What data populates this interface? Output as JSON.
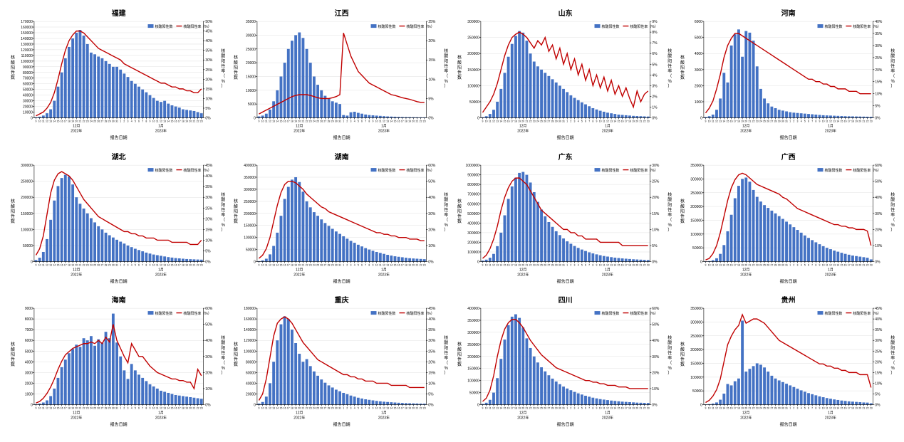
{
  "global": {
    "bar_color": "#4472c4",
    "line_color": "#c00000",
    "background_color": "#ffffff",
    "grid_color": "#e0e0e0",
    "axis_color": "#000000",
    "legend_bar_label": "核酸阳性数",
    "legend_line_label": "核酸阳性率（%）",
    "y_left_label": "核酸阳性数",
    "y_right_label": "核酸阳性率（%）",
    "x_label": "报告日期",
    "x_month_labels": [
      "12月",
      "1月"
    ],
    "x_year_labels": [
      "2022年",
      "2023年"
    ],
    "x_day_labels": [
      "9",
      "10",
      "11",
      "12",
      "13",
      "14",
      "15",
      "16",
      "17",
      "18",
      "19",
      "20",
      "21",
      "22",
      "23",
      "24",
      "25",
      "26",
      "27",
      "28",
      "29",
      "30",
      "31",
      "1",
      "2",
      "3",
      "4",
      "5",
      "6",
      "7",
      "8",
      "9",
      "10",
      "11",
      "12",
      "13",
      "14",
      "15",
      "16",
      "17",
      "18",
      "19",
      "20",
      "21",
      "22",
      "23"
    ],
    "title_fontsize": 10,
    "label_fontsize": 6,
    "tick_fontsize": 5,
    "bar_width": 0.75,
    "line_width": 1.4
  },
  "panels": [
    {
      "title": "福建",
      "y_left_max": 170000,
      "y_left_step": 10000,
      "y_right_max": 50,
      "y_right_step": 5,
      "bars": [
        1000,
        2000,
        4000,
        8000,
        15000,
        30000,
        55000,
        80000,
        105000,
        125000,
        140000,
        150000,
        155000,
        145000,
        130000,
        115000,
        112000,
        108000,
        105000,
        100000,
        95000,
        90000,
        90000,
        85000,
        78000,
        72000,
        65000,
        60000,
        55000,
        50000,
        45000,
        40000,
        35000,
        30000,
        28000,
        30000,
        25000,
        22000,
        20000,
        18000,
        15000,
        14000,
        13000,
        12000,
        10000,
        8000
      ],
      "line": [
        1,
        2,
        3,
        5,
        8,
        13,
        20,
        28,
        35,
        40,
        43,
        45,
        45,
        44,
        42,
        40,
        38,
        36,
        35,
        34,
        33,
        32,
        31,
        30,
        28,
        27,
        26,
        25,
        24,
        23,
        22,
        21,
        20,
        19,
        18,
        18,
        17,
        16,
        16,
        15,
        15,
        14,
        14,
        13,
        13,
        15
      ]
    },
    {
      "title": "江西",
      "y_left_max": 35000,
      "y_left_step": 5000,
      "y_right_max": 25,
      "y_right_step": 5,
      "bars": [
        500,
        800,
        1500,
        3000,
        6000,
        10000,
        15000,
        20000,
        25000,
        28000,
        30000,
        31000,
        29000,
        25000,
        20000,
        15000,
        12000,
        10000,
        8000,
        7000,
        6000,
        5500,
        5000,
        1000,
        800,
        2000,
        2200,
        1800,
        1500,
        1200,
        1000,
        900,
        800,
        700,
        600,
        500,
        450,
        400,
        350,
        300,
        280,
        260,
        240,
        220,
        200,
        180
      ],
      "line": [
        1,
        1.5,
        2,
        2.5,
        3,
        3.5,
        4,
        4.5,
        5,
        5.5,
        5.8,
        6,
        6,
        6,
        5.8,
        5.5,
        5.2,
        5,
        5,
        5,
        5.2,
        5.5,
        6,
        22,
        19,
        16,
        14,
        12,
        11,
        10,
        9,
        8.5,
        8,
        7.5,
        7,
        6.5,
        6,
        5.8,
        5.5,
        5.2,
        5,
        4.8,
        4.5,
        4.2,
        4,
        4
      ]
    },
    {
      "title": "山东",
      "y_left_max": 300000,
      "y_left_step": 50000,
      "y_right_max": 9,
      "y_right_step": 1,
      "bars": [
        2000,
        5000,
        12000,
        25000,
        50000,
        90000,
        140000,
        190000,
        230000,
        255000,
        270000,
        265000,
        240000,
        200000,
        175000,
        160000,
        150000,
        140000,
        130000,
        120000,
        110000,
        100000,
        90000,
        80000,
        70000,
        62000,
        55000,
        48000,
        42000,
        36000,
        30000,
        26000,
        22000,
        19000,
        16000,
        14000,
        12000,
        10000,
        9000,
        8000,
        7000,
        6000,
        5500,
        5000,
        4500,
        4000
      ],
      "line": [
        0.5,
        1,
        1.5,
        2.2,
        3.2,
        4.5,
        5.8,
        6.8,
        7.5,
        7.8,
        8,
        7.8,
        7.5,
        7,
        6.5,
        7.2,
        6.8,
        7.5,
        6.2,
        6.8,
        5.5,
        6.5,
        5,
        6,
        4.5,
        5.5,
        4,
        5,
        3.5,
        4.5,
        3,
        4,
        2.8,
        3.8,
        2.5,
        3.5,
        2.2,
        3,
        2,
        2.8,
        1.8,
        1,
        2.5,
        1.5,
        2.2,
        2.5
      ]
    },
    {
      "title": "河南",
      "y_left_max": 6000,
      "y_left_step": 1000,
      "y_right_max": 40,
      "y_right_step": 5,
      "bars": [
        50,
        100,
        200,
        500,
        1200,
        2800,
        2200,
        4500,
        5200,
        5500,
        3800,
        5400,
        5300,
        4800,
        3200,
        1800,
        1200,
        900,
        700,
        600,
        500,
        450,
        400,
        350,
        320,
        300,
        280,
        260,
        240,
        220,
        200,
        180,
        160,
        150,
        140,
        130,
        120,
        110,
        100,
        95,
        90,
        85,
        80,
        75,
        70,
        65
      ],
      "line": [
        2,
        4,
        7,
        12,
        18,
        25,
        30,
        33,
        35,
        35,
        34,
        33,
        32,
        31,
        30,
        29,
        28,
        27,
        26,
        25,
        24,
        23,
        22,
        21,
        20,
        19,
        18,
        17,
        16,
        16,
        15,
        15,
        14,
        14,
        13,
        13,
        12,
        12,
        12,
        11,
        11,
        11,
        10,
        10,
        10,
        10
      ]
    },
    {
      "title": "湖北",
      "y_left_max": 300000,
      "y_left_step": 50000,
      "y_right_max": 45,
      "y_right_step": 5,
      "bars": [
        5000,
        12000,
        30000,
        70000,
        130000,
        190000,
        235000,
        260000,
        270000,
        265000,
        240000,
        200000,
        180000,
        165000,
        150000,
        135000,
        122000,
        110000,
        100000,
        90000,
        82000,
        75000,
        68000,
        62000,
        56000,
        50000,
        45000,
        40000,
        36000,
        32000,
        28000,
        25000,
        22000,
        20000,
        18000,
        16000,
        14000,
        12500,
        11000,
        10000,
        9000,
        8000,
        7500,
        7000,
        6500,
        6000
      ],
      "line": [
        3,
        6,
        12,
        22,
        32,
        38,
        41,
        42,
        41,
        40,
        38,
        35,
        32,
        29,
        27,
        25,
        23,
        21,
        20,
        19,
        18,
        17,
        16,
        15,
        14,
        14,
        13,
        13,
        12,
        12,
        11,
        11,
        11,
        10,
        10,
        10,
        10,
        9,
        9,
        9,
        9,
        9,
        8,
        8,
        8,
        10
      ]
    },
    {
      "title": "湖南",
      "y_left_max": 400000,
      "y_left_step": 50000,
      "y_right_max": 60,
      "y_right_step": 10,
      "bars": [
        2000,
        5000,
        12000,
        30000,
        65000,
        120000,
        190000,
        260000,
        310000,
        340000,
        350000,
        330000,
        290000,
        250000,
        225000,
        205000,
        190000,
        175000,
        160000,
        148000,
        136000,
        125000,
        115000,
        105000,
        95000,
        86000,
        78000,
        70000,
        63000,
        56000,
        50000,
        45000,
        40000,
        36000,
        32000,
        28000,
        25000,
        22000,
        20000,
        18000,
        16000,
        14000,
        13000,
        12000,
        11000,
        10000
      ],
      "line": [
        2,
        4,
        8,
        15,
        25,
        35,
        43,
        48,
        50,
        50,
        49,
        47,
        45,
        42,
        40,
        38,
        36,
        34,
        33,
        31,
        30,
        29,
        28,
        27,
        26,
        25,
        24,
        23,
        22,
        21,
        20,
        19,
        18,
        18,
        17,
        17,
        16,
        16,
        15,
        15,
        15,
        14,
        14,
        14,
        13,
        13
      ]
    },
    {
      "title": "广东",
      "y_left_max": 1000000,
      "y_left_step": 100000,
      "y_right_max": 30,
      "y_right_step": 5,
      "bars": [
        10000,
        20000,
        40000,
        80000,
        160000,
        300000,
        480000,
        650000,
        780000,
        870000,
        920000,
        930000,
        900000,
        820000,
        720000,
        620000,
        540000,
        470000,
        410000,
        360000,
        315000,
        275000,
        240000,
        210000,
        185000,
        162000,
        142000,
        125000,
        110000,
        96000,
        85000,
        75000,
        66000,
        58000,
        52000,
        46000,
        41000,
        37000,
        33000,
        30000,
        27000,
        24000,
        22000,
        20000,
        18000,
        16000
      ],
      "line": [
        1,
        2,
        4,
        7,
        11,
        16,
        20,
        23,
        25,
        26,
        26,
        25,
        24,
        22,
        20,
        18,
        16,
        15,
        14,
        13,
        12,
        11,
        10,
        10,
        9,
        9,
        8,
        8,
        7,
        7,
        7,
        7,
        6,
        6,
        6,
        6,
        6,
        6,
        5,
        5,
        5,
        5,
        5,
        5,
        5,
        5
      ]
    },
    {
      "title": "广西",
      "y_left_max": 350000,
      "y_left_step": 50000,
      "y_right_max": 60,
      "y_right_step": 10,
      "bars": [
        1000,
        2000,
        5000,
        12000,
        28000,
        60000,
        110000,
        170000,
        230000,
        275000,
        300000,
        305000,
        290000,
        260000,
        235000,
        218000,
        205000,
        195000,
        185000,
        175000,
        165000,
        155000,
        145000,
        135000,
        125000,
        115000,
        105000,
        95000,
        86000,
        78000,
        70000,
        63000,
        56000,
        50000,
        45000,
        40000,
        36000,
        32000,
        28000,
        25000,
        22000,
        20000,
        18000,
        16000,
        14000,
        8000
      ],
      "line": [
        1,
        2,
        5,
        10,
        18,
        28,
        38,
        46,
        51,
        54,
        55,
        54,
        52,
        50,
        48,
        47,
        46,
        45,
        44,
        43,
        42,
        40,
        39,
        37,
        35,
        33,
        32,
        31,
        30,
        29,
        28,
        27,
        26,
        25,
        24,
        23,
        23,
        22,
        22,
        21,
        21,
        20,
        20,
        20,
        19,
        10
      ]
    },
    {
      "title": "海南",
      "y_left_max": 9000,
      "y_left_step": 1000,
      "y_right_max": 60,
      "y_right_step": 10,
      "bars": [
        50,
        100,
        200,
        400,
        800,
        1500,
        2500,
        3500,
        4200,
        4800,
        5200,
        5600,
        5400,
        6200,
        6000,
        6400,
        5500,
        6100,
        5800,
        6800,
        6200,
        8500,
        5800,
        4500,
        3200,
        2400,
        3800,
        3200,
        2800,
        2500,
        2200,
        1900,
        1700,
        1500,
        1300,
        1200,
        1100,
        1000,
        900,
        850,
        800,
        750,
        700,
        650,
        600,
        550
      ],
      "line": [
        1,
        2,
        4,
        7,
        11,
        16,
        22,
        27,
        31,
        33,
        35,
        36,
        37,
        38,
        38,
        39,
        38,
        40,
        38,
        42,
        39,
        50,
        40,
        35,
        30,
        26,
        38,
        34,
        30,
        30,
        27,
        24,
        22,
        20,
        19,
        18,
        17,
        16,
        16,
        15,
        15,
        14,
        14,
        10,
        22,
        18
      ]
    },
    {
      "title": "重庆",
      "y_left_max": 180000,
      "y_left_step": 20000,
      "y_right_max": 45,
      "y_right_step": 5,
      "bars": [
        2000,
        5000,
        15000,
        40000,
        80000,
        120000,
        150000,
        165000,
        160000,
        140000,
        115000,
        95000,
        80000,
        85000,
        72000,
        62000,
        54000,
        47000,
        41000,
        36000,
        32000,
        28000,
        25000,
        22000,
        19500,
        17000,
        15000,
        13000,
        11500,
        10000,
        9000,
        8000,
        7000,
        6200,
        5500,
        5000,
        4500,
        4000,
        3600,
        3200,
        2900,
        2600,
        2400,
        2200,
        2000,
        1800
      ],
      "line": [
        2,
        5,
        12,
        22,
        32,
        38,
        40,
        41,
        40,
        38,
        35,
        32,
        29,
        27,
        25,
        23,
        21,
        20,
        19,
        18,
        17,
        16,
        15,
        14,
        14,
        13,
        13,
        12,
        12,
        11,
        11,
        11,
        10,
        10,
        10,
        10,
        9,
        9,
        9,
        9,
        9,
        8,
        8,
        8,
        8,
        8
      ]
    },
    {
      "title": "四川",
      "y_left_max": 400000,
      "y_left_step": 50000,
      "y_right_max": 60,
      "y_right_step": 10,
      "bars": [
        3000,
        8000,
        20000,
        50000,
        110000,
        190000,
        270000,
        330000,
        365000,
        375000,
        360000,
        320000,
        275000,
        235000,
        200000,
        175000,
        155000,
        138000,
        122000,
        108000,
        96000,
        85000,
        75000,
        67000,
        60000,
        53000,
        47000,
        42000,
        37000,
        33000,
        29000,
        26000,
        23000,
        21000,
        19000,
        17000,
        15500,
        14000,
        12500,
        11500,
        10500,
        9500,
        8500,
        8000,
        7500,
        7000
      ],
      "line": [
        2,
        4,
        9,
        18,
        30,
        40,
        47,
        51,
        53,
        53,
        51,
        48,
        44,
        40,
        37,
        34,
        31,
        29,
        27,
        25,
        23,
        22,
        21,
        20,
        19,
        18,
        17,
        16,
        15,
        15,
        14,
        14,
        13,
        13,
        12,
        12,
        12,
        11,
        11,
        11,
        10,
        10,
        10,
        10,
        10,
        10
      ]
    },
    {
      "title": "贵州",
      "y_left_max": 350000,
      "y_left_step": 50000,
      "y_right_max": 45,
      "y_right_step": 5,
      "bars": [
        1000,
        2000,
        4000,
        8000,
        18000,
        40000,
        75000,
        70000,
        85000,
        95000,
        305000,
        120000,
        130000,
        140000,
        150000,
        145000,
        135000,
        120000,
        105000,
        95000,
        88000,
        82000,
        76000,
        70000,
        64000,
        58000,
        52000,
        47000,
        42000,
        38000,
        34000,
        30000,
        27000,
        24000,
        21500,
        19000,
        17000,
        15000,
        13500,
        12000,
        11000,
        10000,
        9000,
        8000,
        7500,
        5000
      ],
      "line": [
        1,
        2,
        4,
        7,
        12,
        20,
        28,
        32,
        35,
        37,
        42,
        38,
        39,
        40,
        40,
        39,
        38,
        36,
        34,
        32,
        30,
        29,
        28,
        27,
        26,
        25,
        24,
        23,
        22,
        21,
        20,
        19,
        19,
        18,
        18,
        17,
        17,
        16,
        16,
        15,
        15,
        15,
        14,
        14,
        14,
        8
      ]
    }
  ]
}
